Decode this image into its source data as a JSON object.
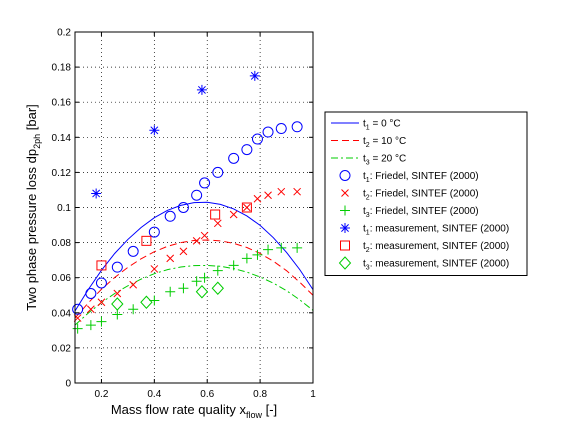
{
  "chart_data": {
    "type": "line",
    "xlabel": "Mass flow rate quality x",
    "xlabel_sub": "flow",
    "xlabel_unit": " [-]",
    "ylabel": "Two phase pressure loss dp",
    "ylabel_sub": "2ph",
    "ylabel_unit": " [bar]",
    "xlim": [
      0.1,
      1.0
    ],
    "ylim": [
      0,
      0.2
    ],
    "xticks": [
      0.2,
      0.4,
      0.6,
      0.8,
      1
    ],
    "yticks": [
      0,
      0.02,
      0.04,
      0.06,
      0.08,
      0.1,
      0.12,
      0.14,
      0.16,
      0.18,
      0.2
    ],
    "grid": "dotted",
    "legend_position": "right, outside plot",
    "series": [
      {
        "name_prefix": "t",
        "name_sub": "1",
        "name_suffix": " =  0 °C",
        "kind": "line",
        "dash": "solid",
        "color": "#0000ff",
        "x": [
          0.1,
          0.15,
          0.2,
          0.25,
          0.3,
          0.35,
          0.4,
          0.45,
          0.5,
          0.55,
          0.6,
          0.65,
          0.7,
          0.75,
          0.8,
          0.85,
          0.9,
          0.95,
          1.0
        ],
        "y": [
          0.041,
          0.0532,
          0.0642,
          0.0738,
          0.0818,
          0.0886,
          0.0942,
          0.0984,
          0.1012,
          0.1028,
          0.103,
          0.1018,
          0.0992,
          0.0952,
          0.0898,
          0.0828,
          0.0744,
          0.0646,
          0.0532
        ]
      },
      {
        "name_prefix": "t",
        "name_sub": "2",
        "name_suffix": " = 10 °C",
        "kind": "line",
        "dash": "dashed",
        "color": "#ff0000",
        "x": [
          0.1,
          0.15,
          0.2,
          0.25,
          0.3,
          0.35,
          0.4,
          0.45,
          0.5,
          0.55,
          0.6,
          0.65,
          0.7,
          0.75,
          0.8,
          0.85,
          0.9,
          0.95,
          1.0
        ],
        "y": [
          0.037,
          0.0456,
          0.0534,
          0.0601,
          0.0659,
          0.0708,
          0.0748,
          0.0779,
          0.08,
          0.0812,
          0.0815,
          0.081,
          0.0796,
          0.0772,
          0.0738,
          0.0694,
          0.064,
          0.0574,
          0.05
        ]
      },
      {
        "name_prefix": "t",
        "name_sub": "3",
        "name_suffix": " = 20 °C",
        "kind": "line",
        "dash": "dashdot",
        "color": "#00cc00",
        "x": [
          0.1,
          0.15,
          0.2,
          0.25,
          0.3,
          0.35,
          0.4,
          0.45,
          0.5,
          0.55,
          0.6,
          0.65,
          0.7,
          0.75,
          0.8,
          0.85,
          0.9,
          0.95,
          1.0
        ],
        "y": [
          0.033,
          0.0398,
          0.0458,
          0.051,
          0.0554,
          0.0592,
          0.0623,
          0.0646,
          0.0661,
          0.0669,
          0.067,
          0.0665,
          0.0652,
          0.0632,
          0.0604,
          0.0569,
          0.0526,
          0.0474,
          0.0414
        ]
      },
      {
        "name_prefix": "t",
        "name_sub": "1",
        "name_suffix": ": Friedel, SINTEF (2000)",
        "kind": "marker",
        "marker": "circle",
        "color": "#0000ff",
        "x": [
          0.11,
          0.16,
          0.2,
          0.26,
          0.32,
          0.4,
          0.46,
          0.51,
          0.56,
          0.59,
          0.64,
          0.7,
          0.75,
          0.79,
          0.83,
          0.88,
          0.94
        ],
        "y": [
          0.042,
          0.051,
          0.057,
          0.066,
          0.075,
          0.086,
          0.095,
          0.1,
          0.107,
          0.114,
          0.12,
          0.128,
          0.133,
          0.139,
          0.143,
          0.145,
          0.146
        ]
      },
      {
        "name_prefix": "t",
        "name_sub": "2",
        "name_suffix": ": Friedel, SINTEF (2000)",
        "kind": "marker",
        "marker": "x",
        "color": "#ff0000",
        "x": [
          0.11,
          0.16,
          0.2,
          0.26,
          0.32,
          0.4,
          0.46,
          0.51,
          0.56,
          0.59,
          0.64,
          0.7,
          0.75,
          0.79,
          0.83,
          0.88,
          0.94
        ],
        "y": [
          0.037,
          0.042,
          0.046,
          0.051,
          0.056,
          0.065,
          0.071,
          0.075,
          0.081,
          0.084,
          0.091,
          0.096,
          0.1,
          0.105,
          0.107,
          0.109,
          0.109
        ]
      },
      {
        "name_prefix": "t",
        "name_sub": "3",
        "name_suffix": ": Friedel, SINTEF (2000)",
        "kind": "marker",
        "marker": "plus",
        "color": "#00cc00",
        "x": [
          0.11,
          0.16,
          0.2,
          0.26,
          0.32,
          0.4,
          0.46,
          0.51,
          0.56,
          0.59,
          0.64,
          0.7,
          0.75,
          0.79,
          0.83,
          0.88,
          0.94
        ],
        "y": [
          0.031,
          0.033,
          0.035,
          0.039,
          0.042,
          0.047,
          0.052,
          0.054,
          0.058,
          0.06,
          0.064,
          0.067,
          0.071,
          0.073,
          0.076,
          0.077,
          0.077
        ]
      },
      {
        "name_prefix": "t",
        "name_sub": "1",
        "name_suffix": ": measurement, SINTEF (2000)",
        "kind": "marker",
        "marker": "asterisk",
        "color": "#0000ff",
        "x": [
          0.18,
          0.4,
          0.58,
          0.78
        ],
        "y": [
          0.108,
          0.144,
          0.167,
          0.175
        ]
      },
      {
        "name_prefix": "t",
        "name_sub": "2",
        "name_suffix": ": measurement, SINTEF (2000)",
        "kind": "marker",
        "marker": "square",
        "color": "#ff0000",
        "x": [
          0.2,
          0.37,
          0.63,
          0.75
        ],
        "y": [
          0.067,
          0.081,
          0.096,
          0.1
        ]
      },
      {
        "name_prefix": "t",
        "name_sub": "3",
        "name_suffix": ": measurement, SINTEF (2000)",
        "kind": "marker",
        "marker": "diamond",
        "color": "#00cc00",
        "x": [
          0.26,
          0.37,
          0.58,
          0.64
        ],
        "y": [
          0.045,
          0.046,
          0.052,
          0.054
        ]
      }
    ]
  }
}
